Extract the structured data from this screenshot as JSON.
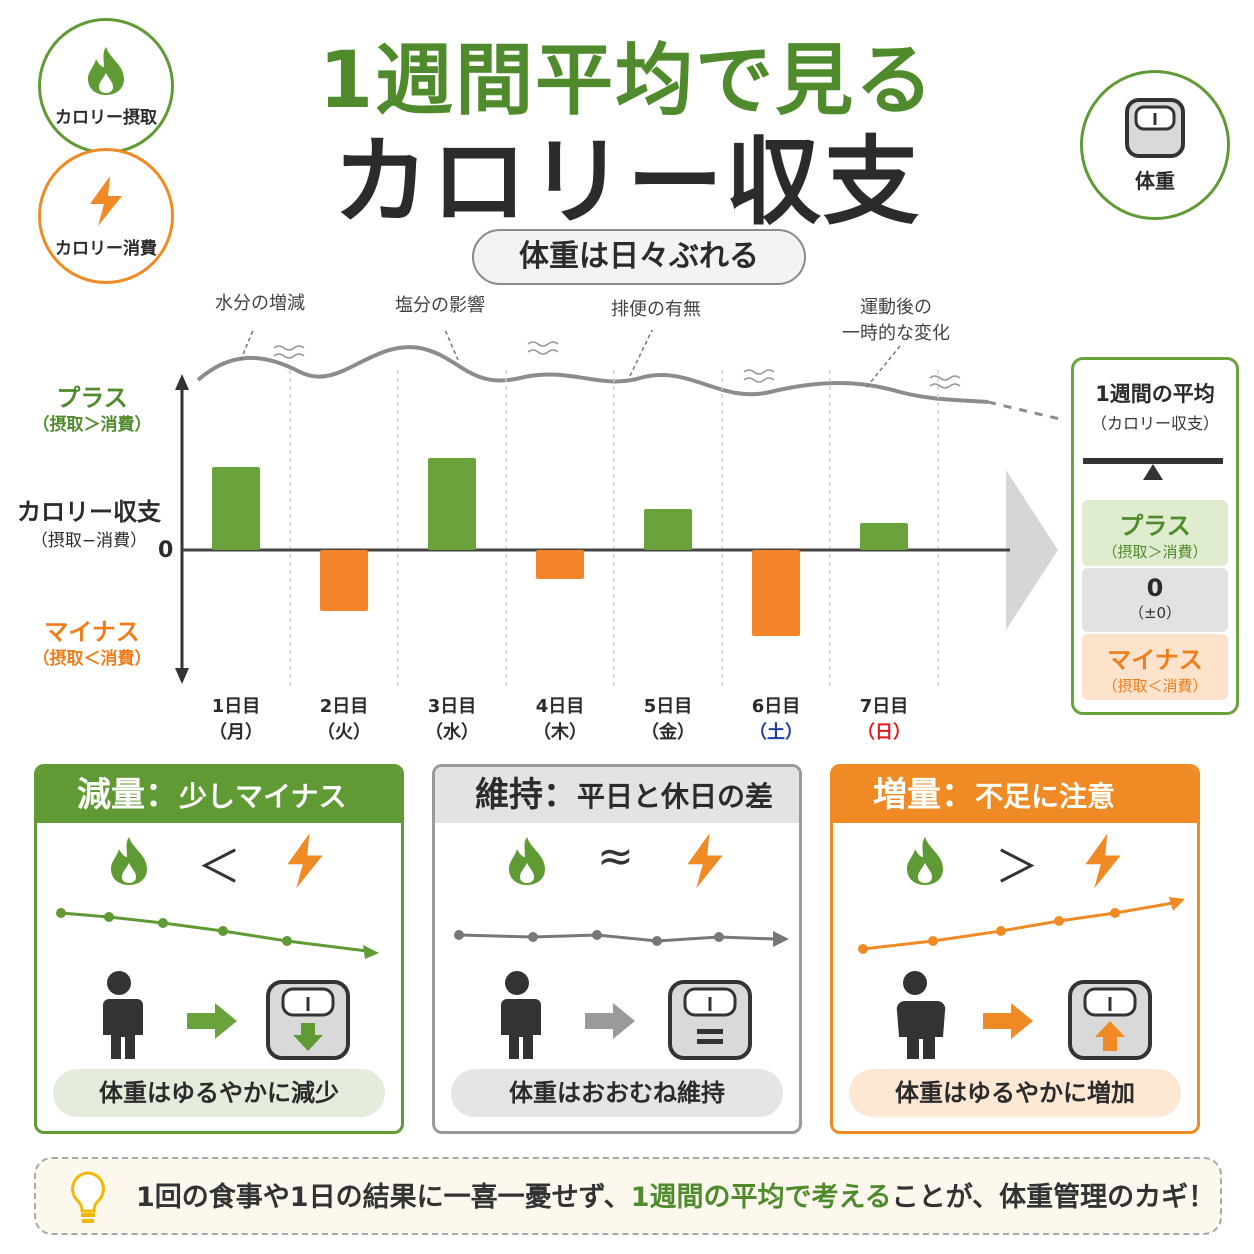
{
  "badges": {
    "intake": {
      "label": "カロリー摂取",
      "icon": "flame-icon",
      "color": "#5f9a35"
    },
    "burn": {
      "label": "カロリー消費",
      "icon": "lightning-icon",
      "color": "#f08a24"
    },
    "weight": {
      "label": "体重",
      "icon": "scale-icon",
      "color": "#5f9a35"
    }
  },
  "title": {
    "line1": "1週間平均で見る",
    "line2": "カロリー収支"
  },
  "subtitle": "体重は日々ぶれる",
  "fluctuation_notes": [
    "水分の増減",
    "塩分の影響",
    "排便の有無",
    "運動後の",
    "一時的な変化"
  ],
  "axis": {
    "plus": "プラス",
    "plus_sub": "（摂取＞消費）",
    "label": "カロリー収支",
    "label_sub": "（摂取−消費）",
    "zero": "0",
    "minus": "マイナス",
    "minus_sub": "（摂取＜消費）"
  },
  "days": [
    {
      "day": "1日目",
      "weekday": "（月）"
    },
    {
      "day": "2日目",
      "weekday": "（火）"
    },
    {
      "day": "3日目",
      "weekday": "（水）"
    },
    {
      "day": "4日目",
      "weekday": "（木）"
    },
    {
      "day": "5日目",
      "weekday": "（金）"
    },
    {
      "day": "6日目",
      "weekday": "（土）"
    },
    {
      "day": "7日目",
      "weekday": "（日）"
    }
  ],
  "colors": {
    "green": "#6aa23b",
    "orange": "#f5842a",
    "saturday": "#1f3d99",
    "sunday": "#e01b1b",
    "gray": "#8a8a8a"
  },
  "chart_data": {
    "type": "bar",
    "categories": [
      "1日目",
      "2日目",
      "3日目",
      "4日目",
      "5日目",
      "6日目",
      "7日目"
    ],
    "values": [
      83,
      -61,
      92,
      -29,
      41,
      -86,
      27
    ],
    "ylabel": "カロリー収支",
    "ylim": [
      -130,
      130
    ],
    "grid": true
  },
  "summary": {
    "title": "1週間の平均",
    "title_sub": "（カロリー収支）",
    "plus": "プラス",
    "plus_sub": "（摂取＞消費）",
    "zero": "0",
    "zero_sub": "（±0）",
    "minus": "マイナス",
    "minus_sub": "（摂取＜消費）"
  },
  "panels": [
    {
      "head_big": "減量：",
      "head": "少しマイナス",
      "operator": "＜",
      "result": "体重はゆるやかに減少",
      "arrow": "down-arrow-icon"
    },
    {
      "head_big": "維持：",
      "head": "平日と休日の差",
      "operator": "≈",
      "result": "体重はおおむね維持",
      "arrow": "equals-icon"
    },
    {
      "head_big": "増量：",
      "head": "不足に注意",
      "operator": "＞",
      "result": "体重はゆるやかに増加",
      "arrow": "up-arrow-icon"
    }
  ],
  "tip": {
    "pre": "1回の食事や1日の結果に一喜一憂せず、",
    "highlight": "1週間の平均で考える",
    "post": "ことが、体重管理のカギ！"
  }
}
